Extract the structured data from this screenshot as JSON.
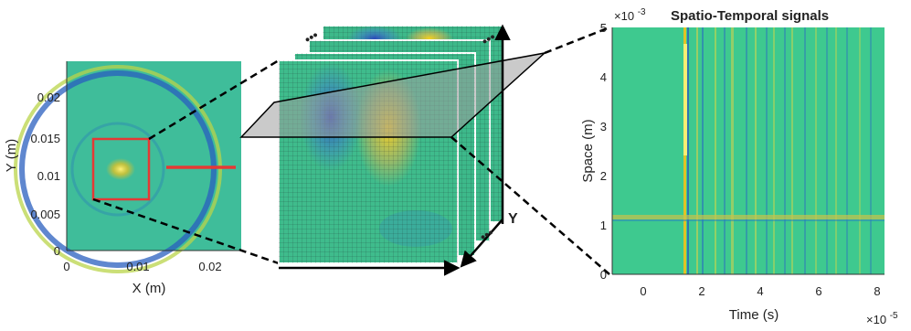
{
  "left_panel": {
    "xlabel": "X (m)",
    "ylabel": "Y (m)",
    "xticks": [
      "0",
      "0.01",
      "0.02"
    ],
    "yticks": [
      "0",
      "0.005",
      "0.01",
      "0.015",
      "0.02"
    ],
    "box_color": "#e53935",
    "line_color": "#e53935"
  },
  "cube": {
    "axis_label_y": "Y",
    "ellipsis": "•••",
    "plane_color": "#9e9e9e"
  },
  "right_panel": {
    "title": "Spatio-Temporal signals",
    "xlabel": "Time (s)",
    "ylabel": "Space (m)",
    "x_exponent": "×10",
    "x_exp_power": "-5",
    "y_exponent": "×10",
    "y_exp_power": "-3",
    "xticks": [
      "0",
      "2",
      "4",
      "6",
      "8"
    ],
    "yticks": [
      "0",
      "1",
      "2",
      "3",
      "4",
      "5"
    ]
  },
  "colors": {
    "field": "#42c38f",
    "field_dark": "#1f4fb5",
    "field_warm": "#f2c21a",
    "background": "#ffffff"
  }
}
